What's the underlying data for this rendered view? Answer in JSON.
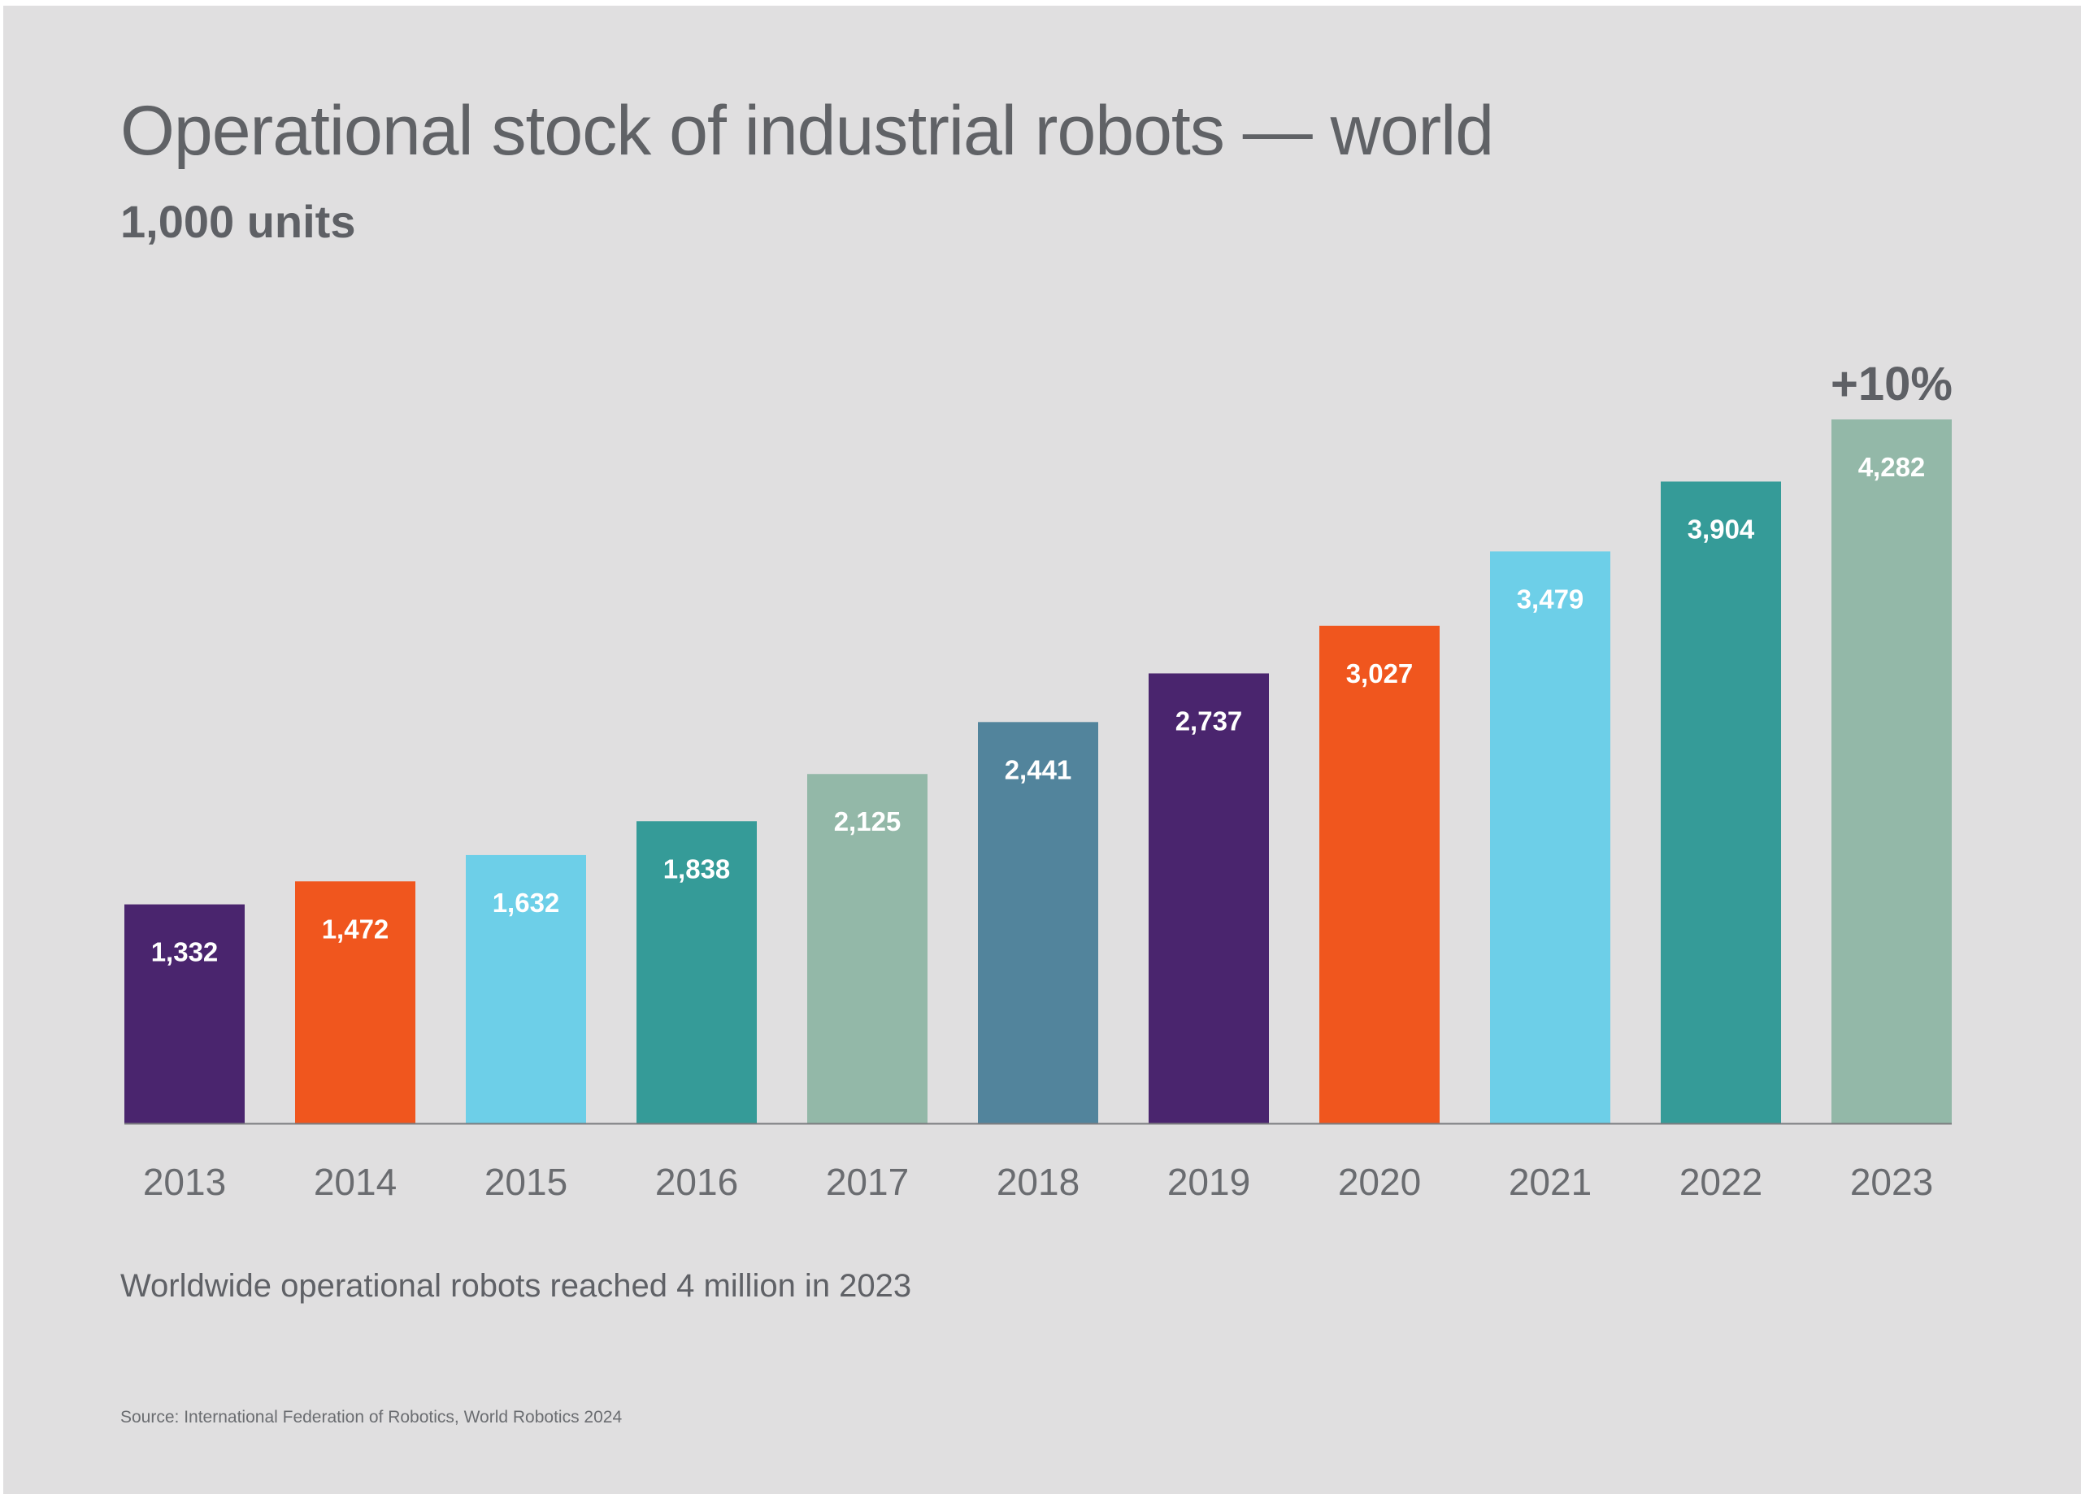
{
  "header": {
    "title": "Operational stock of industrial robots — world",
    "subtitle": "1,000 units"
  },
  "footer": {
    "caption": "Worldwide operational robots reached 4 million in 2023",
    "source": "Source: International Federation of Robotics, World Robotics 2024"
  },
  "colors": {
    "background": "#e0dfe0",
    "text": "#5f6166",
    "axis": "#7c7d80",
    "bar_label": "#ffffff"
  },
  "chart_data": {
    "type": "bar",
    "title": "Operational stock of industrial robots — world",
    "subtitle": "1,000 units",
    "xlabel": "",
    "ylabel": "1,000 units",
    "ylim": [
      0,
      4282
    ],
    "grid": false,
    "legend": "none",
    "categories": [
      "2013",
      "2014",
      "2015",
      "2016",
      "2017",
      "2018",
      "2019",
      "2020",
      "2021",
      "2022",
      "2023"
    ],
    "values": [
      1332,
      1472,
      1632,
      1838,
      2125,
      2441,
      2737,
      3027,
      3479,
      3904,
      4282
    ],
    "value_labels": [
      "1,332",
      "1,472",
      "1,632",
      "1,838",
      "2,125",
      "2,441",
      "2,737",
      "3,027",
      "3,479",
      "3,904",
      "4,282"
    ],
    "bar_colors": [
      "#4a256e",
      "#f0561e",
      "#6dcfe8",
      "#359b98",
      "#93b8a8",
      "#52849c",
      "#4a256e",
      "#f0561e",
      "#6dcfe8",
      "#359b98",
      "#93b8a8"
    ],
    "annotations": [
      {
        "category": "2023",
        "text": "+10%"
      }
    ]
  }
}
